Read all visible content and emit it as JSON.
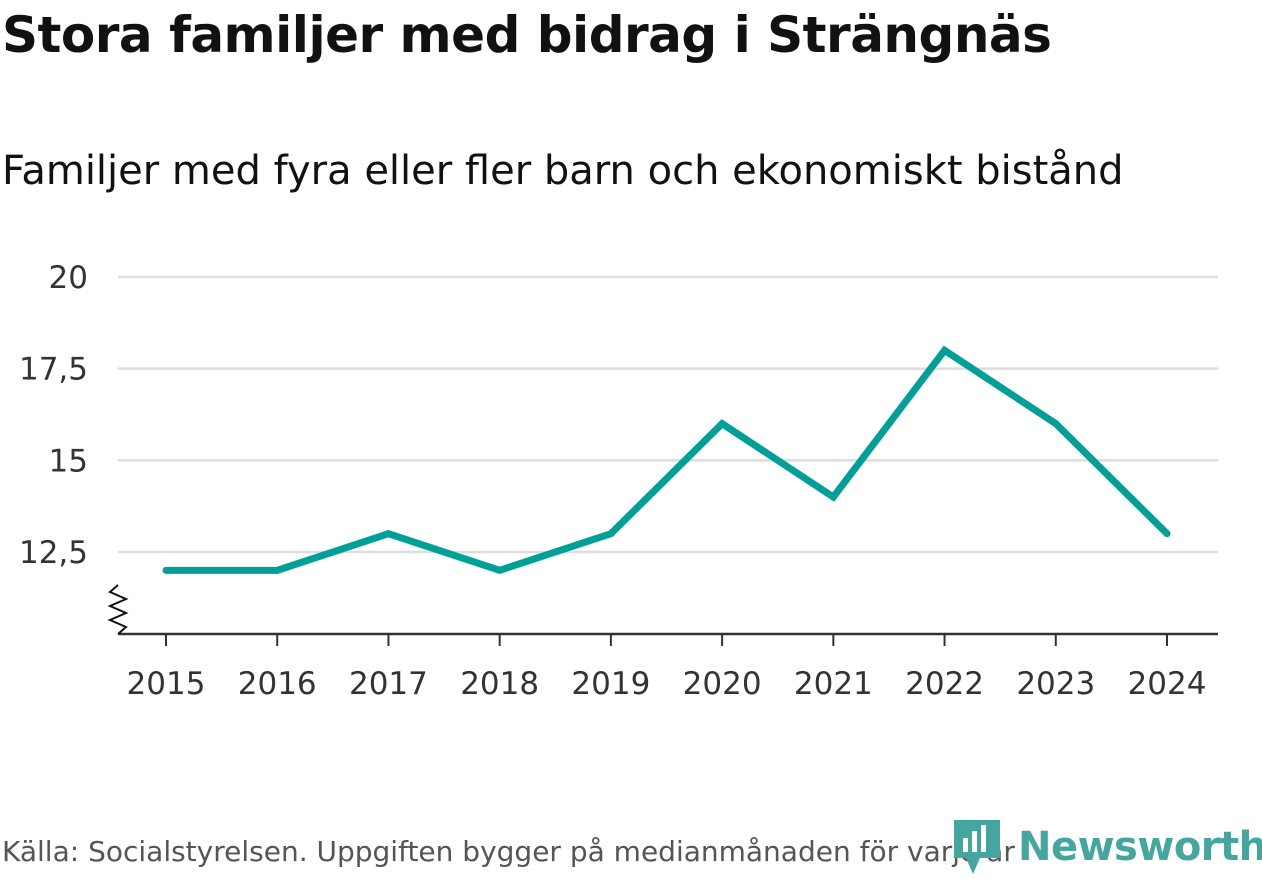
{
  "title": "Stora familjer med bidrag i Strängnäs",
  "subtitle": "Familjer med fyra eller fler barn och ekonomiskt bistånd",
  "source": "Källa: Socialstyrelsen. Uppgiften bygger på medianmånaden för varje år",
  "brand": "Newsworthy",
  "colors": {
    "line": "#00a098",
    "grid": "#dddddd",
    "axis": "#333333",
    "brand": "#44a69e"
  },
  "chart_data": {
    "type": "line",
    "title": "Stora familjer med bidrag i Strängnäs",
    "subtitle": "Familjer med fyra eller fler barn och ekonomiskt bistånd",
    "xlabel": "",
    "ylabel": "",
    "categories": [
      "2015",
      "2016",
      "2017",
      "2018",
      "2019",
      "2020",
      "2021",
      "2022",
      "2023",
      "2024"
    ],
    "series": [
      {
        "name": "Familjer med fyra eller fler barn och ekonomiskt bistånd",
        "values": [
          12,
          12,
          13,
          12,
          13,
          16,
          14,
          18,
          16,
          13
        ]
      }
    ],
    "y_ticks": [
      12.5,
      15,
      17.5,
      20
    ],
    "y_tick_labels": [
      "12,5",
      "15",
      "17,5",
      "20"
    ],
    "ylim": [
      11,
      20
    ],
    "axis_break": true,
    "grid": true,
    "legend": "none"
  }
}
